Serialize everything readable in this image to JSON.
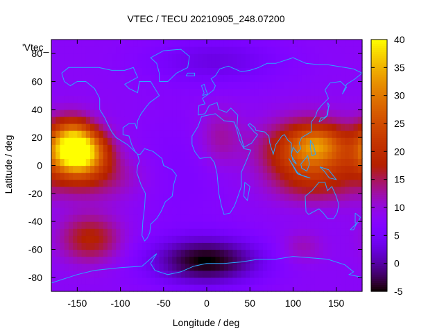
{
  "chart_data": {
    "type": "heatmap",
    "title": "VTEC / TECU 20210905_248.07200",
    "xlabel": "Longitude / deg",
    "ylabel": "Latitude / deg",
    "series_key": "'Vtec_",
    "xlim": [
      -180,
      180
    ],
    "ylim": [
      -90,
      90
    ],
    "x_ticks": [
      -150,
      -100,
      -50,
      0,
      50,
      100,
      150
    ],
    "x_tick_labels": [
      "-150",
      "-100",
      "-50",
      "0",
      "50",
      "100",
      "150"
    ],
    "y_ticks": [
      -80,
      -60,
      -40,
      -20,
      0,
      20,
      40,
      60,
      80
    ],
    "y_tick_labels": [
      "-80",
      "-60",
      "-40",
      "-20",
      "0",
      "20",
      "40",
      "60",
      "80"
    ],
    "colorbar": {
      "range": [
        -5,
        40
      ],
      "ticks": [
        -5,
        0,
        5,
        10,
        15,
        20,
        25,
        30,
        35,
        40
      ],
      "tick_labels": [
        "-5",
        "0",
        "5",
        "10",
        "15",
        "20",
        "25",
        "30",
        "35",
        "40"
      ],
      "palette": "black-purple-red-orange-yellow"
    },
    "field_features": [
      {
        "name": "peak-pacific",
        "lon": -150,
        "lat": 10,
        "value": 36,
        "sigma_lon": 22,
        "sigma_lat": 11
      },
      {
        "name": "peak-pacific-north",
        "lon": -158,
        "lat": 24,
        "value": 10,
        "sigma_lon": 18,
        "sigma_lat": 10
      },
      {
        "name": "band-pacific-south",
        "lon": -135,
        "lat": -8,
        "value": 7,
        "sigma_lon": 40,
        "sigma_lat": 12
      },
      {
        "name": "peak-west-pacific",
        "lon": 120,
        "lat": 10,
        "value": 20,
        "sigma_lon": 36,
        "sigma_lat": 15
      },
      {
        "name": "peak-west-pacific-core",
        "lon": 130,
        "lat": 16,
        "value": 7,
        "sigma_lon": 18,
        "sigma_lat": 8
      },
      {
        "name": "band-indonesia-south",
        "lon": 125,
        "lat": -15,
        "value": 5,
        "sigma_lon": 35,
        "sigma_lat": 10
      },
      {
        "name": "blob-south-pacific",
        "lon": -135,
        "lat": -52,
        "value": 10,
        "sigma_lon": 25,
        "sigma_lat": 12
      },
      {
        "name": "blob-africa",
        "lon": 15,
        "lat": 20,
        "value": 5,
        "sigma_lon": 18,
        "sigma_lat": 15
      },
      {
        "name": "blob-south-indian",
        "lon": 110,
        "lat": -58,
        "value": 4,
        "sigma_lon": 18,
        "sigma_lat": 8
      },
      {
        "name": "trough-antarctic",
        "lon": 0,
        "lat": -68,
        "value": -13,
        "sigma_lon": 45,
        "sigma_lat": 12
      },
      {
        "name": "trough-north-atlantic",
        "lon": 10,
        "lat": 75,
        "value": -5,
        "sigma_lon": 55,
        "sigma_lat": 12
      },
      {
        "name": "trough-atlantic",
        "lon": -30,
        "lat": -5,
        "value": -2,
        "sigma_lon": 40,
        "sigma_lat": 30
      }
    ],
    "background_value": 8
  }
}
